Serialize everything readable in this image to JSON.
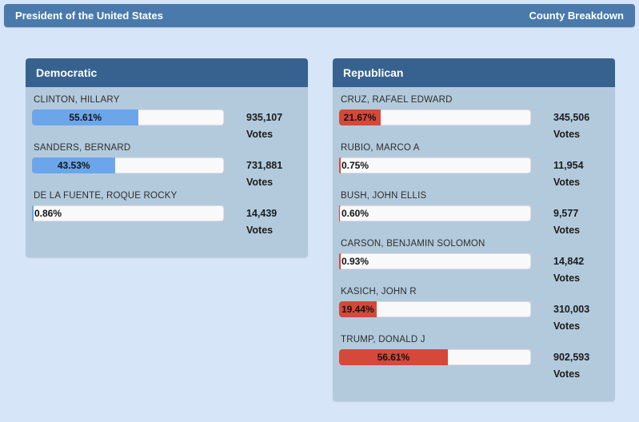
{
  "header": {
    "title": "President of the United States",
    "county_breakdown_label": "County Breakdown"
  },
  "votes_label": "Votes",
  "panels": [
    {
      "id": "democratic",
      "title": "Democratic",
      "bar_color": "#6ca6ea",
      "candidates": [
        {
          "name": "CLINTON, HILLARY",
          "percent": 55.61,
          "percent_label": "55.61%",
          "votes": "935,107"
        },
        {
          "name": "SANDERS, BERNARD",
          "percent": 43.53,
          "percent_label": "43.53%",
          "votes": "731,881"
        },
        {
          "name": "DE LA FUENTE, ROQUE ROCKY",
          "percent": 0.86,
          "percent_label": "0.86%",
          "votes": "14,439"
        }
      ]
    },
    {
      "id": "republican",
      "title": "Republican",
      "bar_color": "#d6483a",
      "candidates": [
        {
          "name": "CRUZ, RAFAEL EDWARD",
          "percent": 21.67,
          "percent_label": "21.67%",
          "votes": "345,506"
        },
        {
          "name": "RUBIO, MARCO A",
          "percent": 0.75,
          "percent_label": "0.75%",
          "votes": "11,954"
        },
        {
          "name": "BUSH, JOHN ELLIS",
          "percent": 0.6,
          "percent_label": "0.60%",
          "votes": "9,577"
        },
        {
          "name": "CARSON, BENJAMIN SOLOMON",
          "percent": 0.93,
          "percent_label": "0.93%",
          "votes": "14,842"
        },
        {
          "name": "KASICH, JOHN R",
          "percent": 19.44,
          "percent_label": "19.44%",
          "votes": "310,003"
        },
        {
          "name": "TRUMP, DONALD J",
          "percent": 56.61,
          "percent_label": "56.61%",
          "votes": "902,593"
        }
      ]
    }
  ],
  "colors": {
    "page_bg": "#d6e5f8",
    "topbar_bg": "#4a7aab",
    "panel_header_bg": "#37628f",
    "panel_body_bg": "#b3cadd",
    "bar_track_bg": "#f9f9f9",
    "democratic_bar": "#6ca6ea",
    "republican_bar": "#d6483a"
  }
}
